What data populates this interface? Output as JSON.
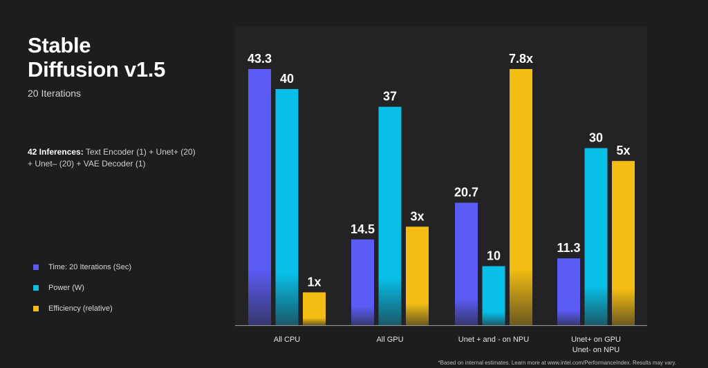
{
  "header": {
    "title_line1": "Stable",
    "title_line2": "Diffusion v1.5",
    "subtitle": "20 Iterations"
  },
  "note": {
    "bold": "42 Inferences:",
    "text": " Text Encoder (1) + Unet+ (20) + Unet– (20) + VAE Decoder (1)"
  },
  "footnote": "*Based on internal estimates. Learn more at www.intel.com/PerformanceIndex. Results may vary.",
  "chart_data": {
    "type": "bar",
    "categories": [
      [
        "All CPU"
      ],
      [
        "All GPU"
      ],
      [
        "Unet + and  - on NPU"
      ],
      [
        "Unet+ on GPU",
        "Unet- on NPU"
      ]
    ],
    "series": [
      {
        "name": "Time: 20 Iterations (Sec)",
        "color": "#5b5cf6",
        "values": [
          43.3,
          14.5,
          20.7,
          11.3
        ],
        "labels": [
          "43.3",
          "14.5",
          "20.7",
          "11.3"
        ]
      },
      {
        "name": "Power (W)",
        "color": "#08bfe8",
        "values": [
          40,
          37,
          10,
          30
        ],
        "labels": [
          "40",
          "37",
          "10",
          "30"
        ]
      },
      {
        "name": "Efficiency (relative)",
        "color": "#f3bd13",
        "values": [
          1,
          3,
          7.8,
          5
        ],
        "labels": [
          "1x",
          "3x",
          "7.8x",
          "5x"
        ]
      }
    ],
    "legend_position": "left",
    "grid": false
  }
}
